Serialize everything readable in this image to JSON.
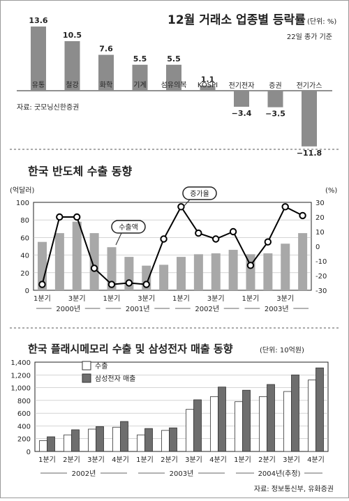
{
  "chart_data": [
    {
      "type": "bar",
      "title": "12월 거래소 업종별 등락률",
      "unit": "(단위: %)",
      "subtitle": "22일 종가 기준",
      "source": "자료: 굿모닝신한증권",
      "categories": [
        "유통",
        "철강",
        "화학",
        "기계",
        "섬유의복",
        "KOSPI",
        "전기전자",
        "증권",
        "전기가스"
      ],
      "values": [
        13.6,
        10.5,
        7.6,
        5.5,
        5.5,
        1.1,
        -3.4,
        -3.5,
        -11.8
      ],
      "value_labels": [
        "13.6",
        "10.5",
        "7.6",
        "5.5",
        "5.5",
        "1.1",
        "−3.4",
        "−3.5",
        "−11.8"
      ],
      "colors": {
        "bar": "#8c8c8c"
      }
    },
    {
      "type": "bar",
      "title": "한국 반도체 수출 동향",
      "left_unit": "(억달러)",
      "right_unit": "(%)",
      "ylim": [
        0,
        100
      ],
      "y2lim": [
        -30,
        30
      ],
      "yticks": [
        "0",
        "20",
        "40",
        "60",
        "80",
        "100"
      ],
      "y2ticks": [
        "-30",
        "-20",
        "-10",
        "0",
        "10",
        "20",
        "30"
      ],
      "series": [
        {
          "name": "수출액",
          "type": "bar",
          "values": [
            55,
            65,
            78,
            65,
            49,
            38,
            28,
            29,
            38,
            41,
            42,
            46,
            41,
            42,
            53,
            65
          ]
        },
        {
          "name": "증가율",
          "type": "line",
          "values": [
            -26,
            20,
            20,
            -15,
            -26,
            -25,
            -26,
            5,
            27,
            9,
            5,
            10,
            -13,
            3,
            27,
            21
          ]
        }
      ],
      "tick_labels": [
        "1분기",
        "",
        "3분기",
        "",
        "1분기",
        "",
        "3분기",
        "",
        "1분기",
        "",
        "3분기",
        "",
        "1분기",
        "",
        "3분기",
        ""
      ],
      "year_labels": [
        "2000년",
        "2001년",
        "2002년",
        "2003년"
      ],
      "colors": {
        "bar": "#a8a8a8",
        "line": "#000000"
      }
    },
    {
      "type": "bar",
      "title": "한국 플래시메모리 수출 및 삼성전자 매출 동향",
      "unit": "(단위: 10억원)",
      "ylim": [
        0,
        1400
      ],
      "yticks": [
        "0",
        "200",
        "400",
        "600",
        "800",
        "1,000",
        "1,200",
        "1,400"
      ],
      "categories": [
        "1분기",
        "2분기",
        "3분기",
        "4분기",
        "1분기",
        "2분기",
        "3분기",
        "4분기",
        "1분기",
        "2분기",
        "3분기",
        "4분기"
      ],
      "year_labels": [
        "2002년",
        "2003년",
        "2004년(추정)"
      ],
      "series": [
        {
          "name": "수출",
          "values": [
            170,
            260,
            350,
            380,
            260,
            330,
            660,
            860,
            780,
            860,
            940,
            1120
          ]
        },
        {
          "name": "삼성전자 매출",
          "values": [
            230,
            340,
            390,
            470,
            360,
            370,
            810,
            1010,
            960,
            1050,
            1200,
            1310
          ]
        }
      ],
      "source": "자료: 정보통신부, 유화증권",
      "colors": {
        "series1": "#ffffff",
        "series2": "#6e6e6e"
      }
    }
  ]
}
